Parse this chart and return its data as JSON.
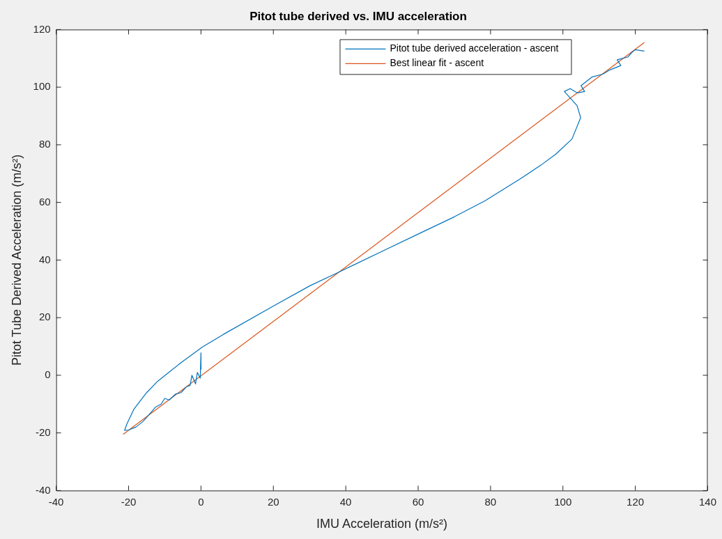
{
  "chart_data": {
    "type": "line",
    "title": "Pitot tube derived vs. IMU acceleration",
    "xlabel": "IMU Acceleration (m/s²)",
    "ylabel": "Pitot Tube Derived Acceleration (m/s²)",
    "xlim": [
      -40,
      140
    ],
    "xticks": [
      -40,
      -20,
      0,
      20,
      40,
      60,
      80,
      100,
      120,
      140
    ],
    "ylim": [
      -40,
      120
    ],
    "yticks": [
      -40,
      -20,
      0,
      20,
      40,
      60,
      80,
      100,
      120
    ],
    "grid": false,
    "legend": "top right",
    "marker": "none",
    "line_style": "solid",
    "series": [
      {
        "name": "Pitot tube derived acceleration - ascent",
        "color": "#0072bd",
        "x": [
          0,
          0,
          -0.2,
          -1,
          -1.5,
          -2.5,
          -3,
          -4,
          -5.5,
          -7,
          -8.8,
          -10,
          -11,
          -12.5,
          -14.6,
          -16,
          -18,
          -20,
          -21.1,
          -20.5,
          -18.5,
          -15,
          -11.9,
          -5.5,
          0.4,
          6.2,
          20,
          30,
          37.9,
          50,
          60,
          70,
          78.5,
          88,
          94,
          98,
          102.5,
          104.9,
          103.9,
          100.4,
          102,
          104,
          106,
          105,
          108,
          111,
          113,
          116,
          115,
          118,
          119,
          120,
          122.5
        ],
        "values": [
          2,
          7.8,
          -1,
          1,
          -3,
          0,
          -3.5,
          -4,
          -6,
          -6.5,
          -8.6,
          -8,
          -10,
          -11,
          -14,
          -16,
          -18,
          -19,
          -19.1,
          -17,
          -11.7,
          -6,
          -2,
          4.4,
          9.8,
          14.2,
          24,
          31,
          35.7,
          43,
          49,
          55,
          60.6,
          68,
          73,
          76.7,
          82,
          89.4,
          93.6,
          98.5,
          99.5,
          98,
          98.5,
          100.5,
          103.5,
          104.5,
          106,
          107.5,
          109.5,
          110.5,
          112,
          113,
          112.5
        ]
      },
      {
        "name": "Best linear fit - ascent",
        "color": "#d95319",
        "x": [
          -21.5,
          122.5
        ],
        "values": [
          -20.5,
          115.5
        ]
      }
    ]
  }
}
